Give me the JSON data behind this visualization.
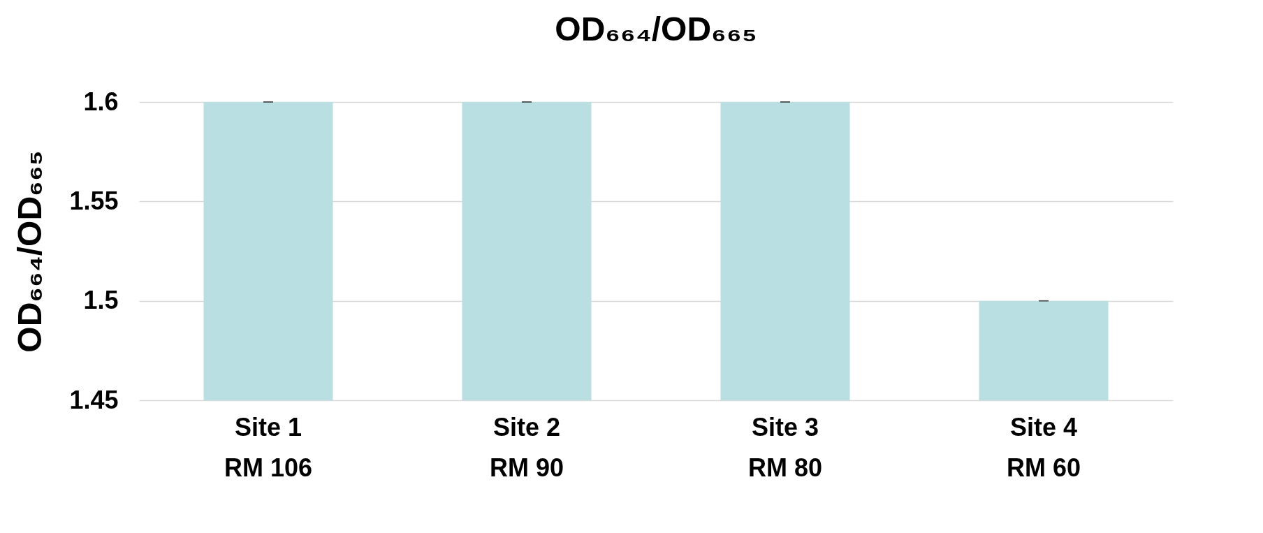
{
  "chart_data": {
    "type": "bar",
    "title": "OD₆₆₄/OD₆₆₅",
    "ylabel": "OD₆₆₄/OD₆₆₅",
    "categories": [
      "Site 1\nRM 106",
      "Site 2\nRM 90",
      "Site 3\nRM 80",
      "Site 4\nRM 60"
    ],
    "values": [
      1.6,
      1.6,
      1.6,
      1.5
    ],
    "errors": [
      0,
      0,
      0,
      0
    ],
    "color": "#b9dfe2",
    "ylim": [
      1.45,
      1.6
    ],
    "yticks": [
      1.45,
      1.5,
      1.55,
      1.6
    ],
    "grid": "y"
  }
}
